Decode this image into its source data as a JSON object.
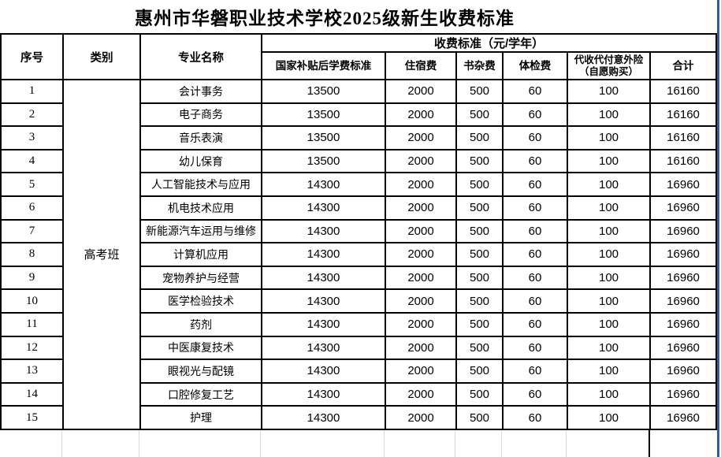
{
  "title": "惠州市华磐职业技术学校2025级新生收费标准",
  "table": {
    "header": {
      "no": "序号",
      "category": "类别",
      "major": "专业名称",
      "fee_group": "收费标准（元/学年）",
      "sub_headers": [
        {
          "label": "国家补贴后学费标准"
        },
        {
          "label": "住宿费"
        },
        {
          "label": "书杂费"
        },
        {
          "label": "体检费"
        },
        {
          "label": "代收代付意外险",
          "label2": "（自愿购买）"
        },
        {
          "label": "合计"
        }
      ]
    },
    "category_merged": "高考班",
    "rows": [
      {
        "no": "1",
        "major": "会计事务",
        "tuition": "13500",
        "accommodation": "2000",
        "books": "500",
        "physical": "60",
        "insurance": "100",
        "total": "16160"
      },
      {
        "no": "2",
        "major": "电子商务",
        "tuition": "13500",
        "accommodation": "2000",
        "books": "500",
        "physical": "60",
        "insurance": "100",
        "total": "16160"
      },
      {
        "no": "3",
        "major": "音乐表演",
        "tuition": "13500",
        "accommodation": "2000",
        "books": "500",
        "physical": "60",
        "insurance": "100",
        "total": "16160"
      },
      {
        "no": "4",
        "major": "幼儿保育",
        "tuition": "13500",
        "accommodation": "2000",
        "books": "500",
        "physical": "60",
        "insurance": "100",
        "total": "16160"
      },
      {
        "no": "5",
        "major": "人工智能技术与应用",
        "tuition": "14300",
        "accommodation": "2000",
        "books": "500",
        "physical": "60",
        "insurance": "100",
        "total": "16960"
      },
      {
        "no": "6",
        "major": "机电技术应用",
        "tuition": "14300",
        "accommodation": "2000",
        "books": "500",
        "physical": "60",
        "insurance": "100",
        "total": "16960"
      },
      {
        "no": "7",
        "major": "新能源汽车运用与维修",
        "tuition": "14300",
        "accommodation": "2000",
        "books": "500",
        "physical": "60",
        "insurance": "100",
        "total": "16960"
      },
      {
        "no": "8",
        "major": "计算机应用",
        "tuition": "14300",
        "accommodation": "2000",
        "books": "500",
        "physical": "60",
        "insurance": "100",
        "total": "16960"
      },
      {
        "no": "9",
        "major": "宠物养护与经营",
        "tuition": "14300",
        "accommodation": "2000",
        "books": "500",
        "physical": "60",
        "insurance": "100",
        "total": "16960"
      },
      {
        "no": "10",
        "major": "医学检验技术",
        "tuition": "14300",
        "accommodation": "2000",
        "books": "500",
        "physical": "60",
        "insurance": "100",
        "total": "16960"
      },
      {
        "no": "11",
        "major": "药剂",
        "tuition": "14300",
        "accommodation": "2000",
        "books": "500",
        "physical": "60",
        "insurance": "100",
        "total": "16960"
      },
      {
        "no": "12",
        "major": "中医康复技术",
        "tuition": "14300",
        "accommodation": "2000",
        "books": "500",
        "physical": "60",
        "insurance": "100",
        "total": "16960"
      },
      {
        "no": "13",
        "major": "眼视光与配镜",
        "tuition": "14300",
        "accommodation": "2000",
        "books": "500",
        "physical": "60",
        "insurance": "100",
        "total": "16960"
      },
      {
        "no": "14",
        "major": "口腔修复工艺",
        "tuition": "14300",
        "accommodation": "2000",
        "books": "500",
        "physical": "60",
        "insurance": "100",
        "total": "16960"
      },
      {
        "no": "15",
        "major": "护理",
        "tuition": "14300",
        "accommodation": "2000",
        "books": "500",
        "physical": "60",
        "insurance": "100",
        "total": "16960"
      }
    ]
  },
  "colors": {
    "border": "#000000",
    "page_boundary_blue": "#2f5ca8",
    "faint_gridline": "#d9d9d9"
  }
}
